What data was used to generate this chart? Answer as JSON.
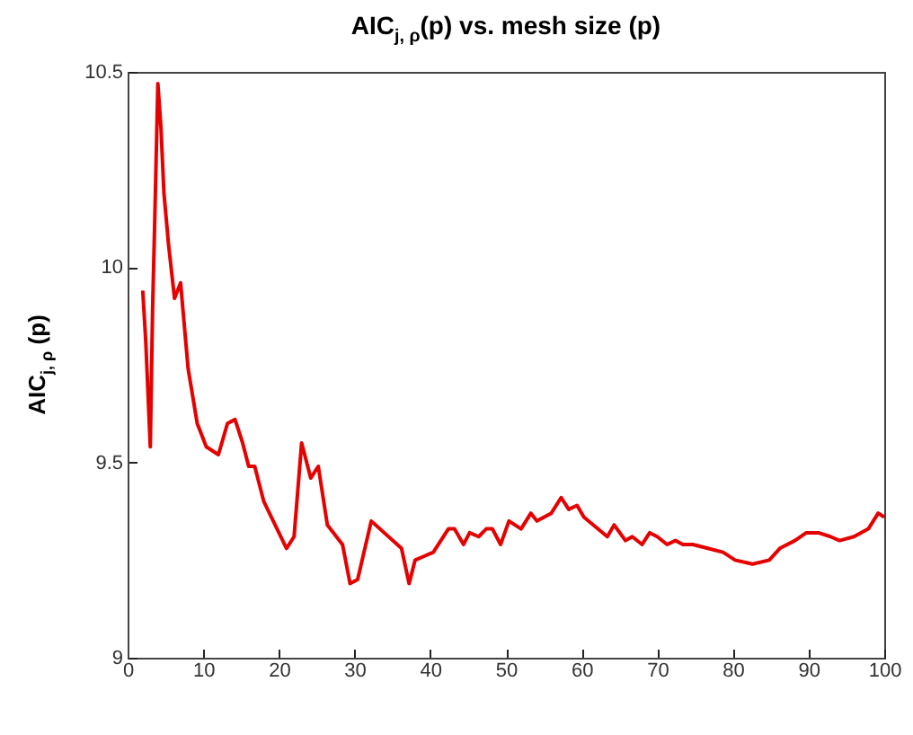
{
  "chart_data": {
    "type": "line",
    "title": "AIC$_{j, ρ}$(p) vs. mesh size (p)",
    "ylabel": "AIC$_{j, ρ}$ (p)",
    "x": [
      2,
      2.4,
      3,
      3.3,
      3.6,
      4,
      4.4,
      4.8,
      5.4,
      6.2,
      7,
      8,
      9.2,
      10.4,
      12,
      13.2,
      14.2,
      15.2,
      16,
      16.8,
      18,
      21,
      22,
      23,
      24.2,
      25.2,
      26.4,
      28.4,
      29.4,
      30.4,
      32.2,
      36.2,
      37.2,
      38,
      39.2,
      40.4,
      42.4,
      43.2,
      44.4,
      45.2,
      46.4,
      47.4,
      48.2,
      49.3,
      50.4,
      52,
      53.3,
      54.1,
      56,
      57.3,
      58.3,
      59.4,
      60.3,
      63.4,
      64.3,
      65.8,
      66.7,
      68,
      69,
      70,
      71.3,
      72.4,
      73.4,
      74.7,
      76.7,
      78.7,
      80.3,
      82.6,
      84.8,
      86.2,
      88.2,
      89.7,
      91.3,
      92.9,
      94.1,
      96,
      97.9,
      99.2,
      100
    ],
    "series": [
      {
        "color": "#e60000",
        "values": [
          9.94,
          9.81,
          9.54,
          9.89,
          10.13,
          10.47,
          10.36,
          10.19,
          10.06,
          9.92,
          9.96,
          9.74,
          9.6,
          9.54,
          9.52,
          9.6,
          9.61,
          9.55,
          9.49,
          9.49,
          9.4,
          9.28,
          9.31,
          9.55,
          9.46,
          9.49,
          9.34,
          9.29,
          9.19,
          9.2,
          9.35,
          9.28,
          9.19,
          9.25,
          9.26,
          9.27,
          9.33,
          9.33,
          9.29,
          9.32,
          9.31,
          9.33,
          9.33,
          9.29,
          9.35,
          9.33,
          9.37,
          9.35,
          9.37,
          9.41,
          9.38,
          9.39,
          9.36,
          9.31,
          9.34,
          9.3,
          9.31,
          9.29,
          9.32,
          9.31,
          9.29,
          9.3,
          9.29,
          9.29,
          9.28,
          9.27,
          9.25,
          9.24,
          9.25,
          9.28,
          9.3,
          9.32,
          9.32,
          9.31,
          9.3,
          9.31,
          9.33,
          9.37,
          9.36
        ]
      }
    ],
    "xlim": [
      0,
      100
    ],
    "xticks": [
      0,
      10,
      20,
      30,
      40,
      50,
      60,
      70,
      80,
      90,
      100
    ],
    "ylim": [
      9,
      10.5
    ],
    "yticks": [
      9,
      9.5,
      10,
      10.5
    ],
    "grid": false
  }
}
